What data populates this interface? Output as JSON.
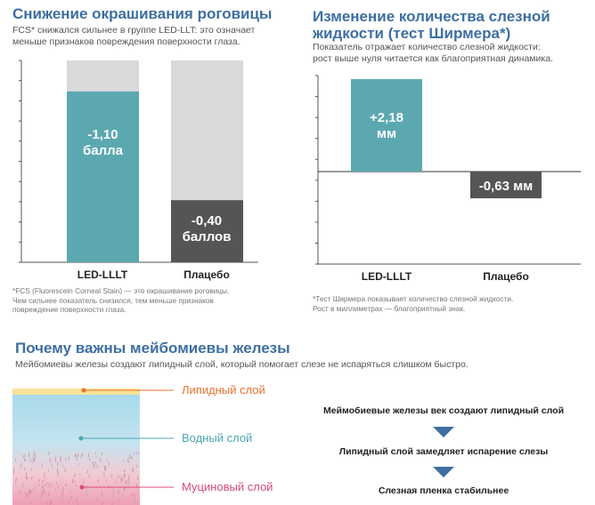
{
  "colors": {
    "teal": "#5ba8b0",
    "dark_gray": "#555555",
    "light_gray": "#d9d9d9",
    "title_blue": "#3d6fa3",
    "orange": "#e8722c",
    "aqua": "#49a8b1",
    "pink": "#d94c79",
    "arrow": "#3d6fa3"
  },
  "left_panel": {
    "title": "Снижение окрашивания роговицы",
    "description": "FCS* снижался сильнее в группе LED-LLT: это означает\nменьше признаков повреждения поверхности глаза.",
    "footnote": "*FCS (Fluorescein Corneal Stain) — это окрашивание роговицы.\nЧем сильнее показатель снизился, тем меньше признаков\nповреждение поверхности глаза."
  },
  "right_panel": {
    "title": "Изменение количества слезной\nжидкости (тест Ширмера*)",
    "description": "Показатель отражает количество слезной жидкости:\nрост выше нуля читается как благоприятная динамика.",
    "footnote": "*Тест Ширмера показывает количество слезной жидкости.\nРост в миллиметрах — благоприятный знак."
  },
  "chart_data": [
    {
      "type": "bar",
      "title": "Снижение окрашивания роговицы",
      "categories": [
        "LED-LLLT",
        "Плацебо"
      ],
      "values": [
        -1.1,
        -0.4
      ],
      "data_labels": [
        "-1,10\nбалла",
        "-0,40\nбаллов"
      ],
      "background_bars": true,
      "grid": false
    },
    {
      "type": "bar",
      "title": "Изменение количества слезной жидкости (тест Ширмера*)",
      "categories": [
        "LED-LLLT",
        "Плацебо"
      ],
      "values": [
        2.18,
        -0.63
      ],
      "data_labels": [
        "+2,18\nмм",
        "-0,63 мм"
      ],
      "ylim": [
        -0.9,
        2.5
      ],
      "grid": false
    }
  ],
  "meibomian": {
    "title": "Почему важны мейбомиевы железы",
    "description": "Мейбомиевы железы создают липидный слой, который помогает слезе не испаряться слишком быстро.",
    "layers": [
      {
        "label": "Липидный слой",
        "color": "#e8722c"
      },
      {
        "label": "Водный слой",
        "color": "#49a8b1"
      },
      {
        "label": "Муциновый слой",
        "color": "#d94c79"
      }
    ],
    "flow": [
      "Меймобиевые железы век создают липидный слой",
      "Липидный слой замедляет испарение слезы",
      "Слезная пленка стабильнее"
    ]
  }
}
